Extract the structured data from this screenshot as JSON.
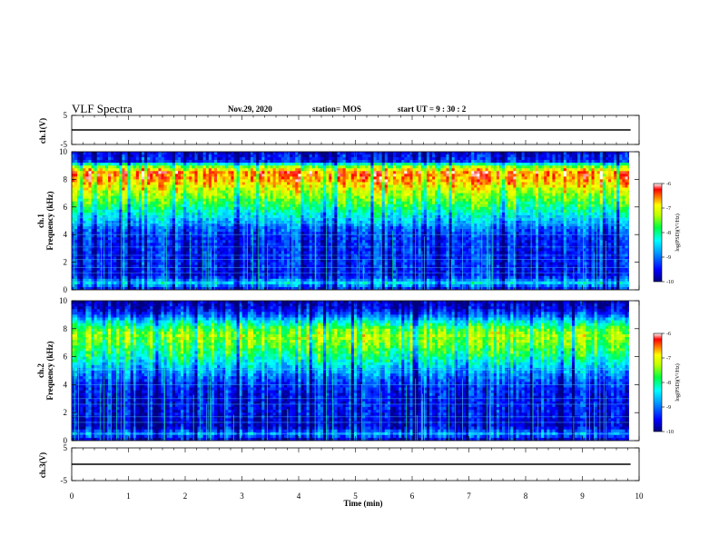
{
  "header": {
    "title": "VLF Spectra",
    "date": "Nov.29, 2020",
    "station": "station= MOS",
    "start": "start  UT =   9  : 30 : 2"
  },
  "axes": {
    "xlabel": "Time  (min)",
    "xticks": [
      "0",
      "1",
      "2",
      "3",
      "4",
      "5",
      "6",
      "7",
      "8",
      "9",
      "10"
    ],
    "ch1v_label": "ch.1(V)",
    "ch3v_label": "ch.3(V)",
    "ch1_label": "ch.1",
    "ch2_label": "ch.2",
    "freq_label": "Frequency (kHz)",
    "v_ticks": [
      "5",
      "-5"
    ],
    "f_ticks": [
      "0",
      "2",
      "4",
      "6",
      "8",
      "10"
    ],
    "colorbar_label": "log(PSD)(V²/Hz)",
    "colorbar_ticks": [
      "-6",
      "-7",
      "-8",
      "-9",
      "-10"
    ]
  },
  "chart_data": [
    {
      "type": "line",
      "name": "ch.1(V)",
      "xlim": [
        0,
        10
      ],
      "ylim": [
        -5,
        5
      ],
      "x": [
        0,
        9.85
      ],
      "y": [
        0,
        0
      ]
    },
    {
      "type": "heatmap",
      "name": "ch.1",
      "xlim": [
        0,
        10
      ],
      "ylim": [
        0,
        10
      ],
      "colorscale_range": [
        -10,
        -6
      ],
      "data_extent_x": [
        0,
        9.85
      ],
      "band_profile": {
        "freq_kHz": [
          0,
          0.5,
          1,
          2,
          3,
          4,
          4.5,
          5,
          6,
          7,
          8,
          8.5,
          9,
          9.3,
          10
        ],
        "log_psd": [
          -9.6,
          -8.5,
          -9.5,
          -9.4,
          -9.4,
          -9.3,
          -9.0,
          -8.6,
          -7.9,
          -7.3,
          -6.6,
          -6.5,
          -7.6,
          -9.3,
          -9.6
        ]
      },
      "hlines_kHz": [
        0.6,
        1.2,
        1.6,
        2.2,
        2.5,
        3.1,
        4.0,
        4.8,
        5.2
      ]
    },
    {
      "type": "heatmap",
      "name": "ch.2",
      "xlim": [
        0,
        10
      ],
      "ylim": [
        0,
        10
      ],
      "colorscale_range": [
        -10,
        -6
      ],
      "data_extent_x": [
        0,
        9.85
      ],
      "band_profile": {
        "freq_kHz": [
          0,
          0.5,
          1,
          2,
          3,
          4,
          5,
          6,
          7,
          7.5,
          8,
          8.5,
          9,
          9.5,
          10
        ],
        "log_psd": [
          -9.8,
          -8.8,
          -9.7,
          -9.5,
          -9.5,
          -9.3,
          -8.7,
          -8.0,
          -7.5,
          -7.3,
          -7.6,
          -8.3,
          -9.1,
          -9.6,
          -9.8
        ]
      },
      "hlines_kHz": [
        0.5,
        1.3,
        1.7,
        2.6,
        3.0,
        4.0,
        5.1
      ]
    },
    {
      "type": "line",
      "name": "ch.3(V)",
      "xlim": [
        0,
        10
      ],
      "ylim": [
        -5,
        5
      ],
      "x": [
        0,
        9.85
      ],
      "y": [
        0,
        0
      ]
    }
  ]
}
